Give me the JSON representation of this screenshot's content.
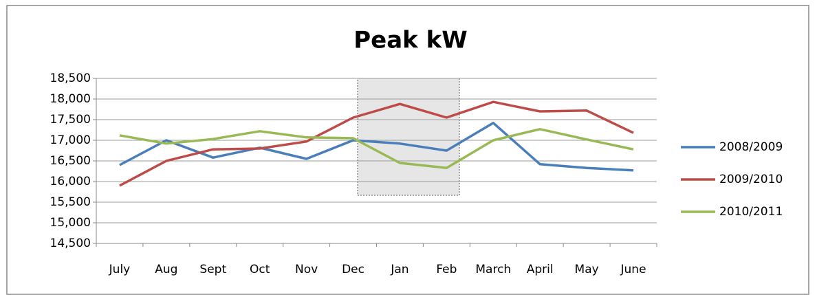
{
  "chart_data": {
    "type": "line",
    "title": "Peak kW",
    "categories": [
      "July",
      "Aug",
      "Sept",
      "Oct",
      "Nov",
      "Dec",
      "Jan",
      "Feb",
      "March",
      "April",
      "May",
      "June"
    ],
    "series": [
      {
        "name": "2008/2009",
        "color": "#4a7ebb",
        "values": [
          16400,
          17000,
          16580,
          16820,
          16550,
          17000,
          16920,
          16750,
          17420,
          16420,
          16330,
          16270
        ]
      },
      {
        "name": "2009/2010",
        "color": "#be4b48",
        "values": [
          15900,
          16500,
          16780,
          16800,
          16970,
          17550,
          17880,
          17550,
          17930,
          17700,
          17720,
          17180
        ]
      },
      {
        "name": "2010/2011",
        "color": "#98b954",
        "values": [
          17120,
          16920,
          17030,
          17220,
          17070,
          17050,
          16450,
          16330,
          17000,
          17270,
          17020,
          16780
        ]
      }
    ],
    "ylim": [
      14500,
      18500
    ],
    "yticks": [
      {
        "value": 14500,
        "label": "14,500"
      },
      {
        "value": 15000,
        "label": "15,000"
      },
      {
        "value": 15500,
        "label": "15,500"
      },
      {
        "value": 16000,
        "label": "16,000"
      },
      {
        "value": 16500,
        "label": "16,500"
      },
      {
        "value": 17000,
        "label": "17,000"
      },
      {
        "value": 17500,
        "label": "17,500"
      },
      {
        "value": 18000,
        "label": "18,000"
      },
      {
        "value": 18500,
        "label": "18,500"
      }
    ],
    "grid": true,
    "legend": "right"
  }
}
